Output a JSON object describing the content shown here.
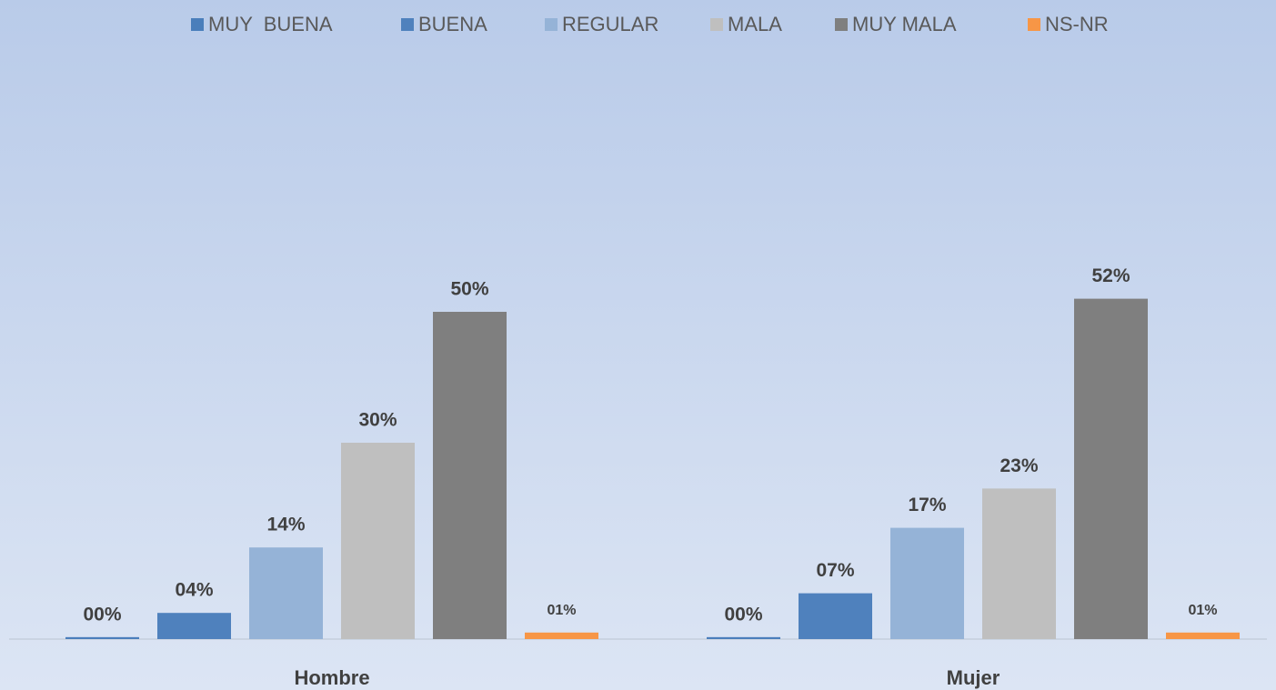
{
  "chart_data": {
    "type": "bar",
    "categories": [
      "Hombre",
      "Mujer"
    ],
    "series": [
      {
        "name": "MUY  BUENA",
        "color": "#4a7ebb",
        "values": [
          0.3,
          0.3
        ],
        "value_labels": [
          "00%",
          "00%"
        ]
      },
      {
        "name": "BUENA",
        "color": "#4f81bd",
        "values": [
          4,
          7
        ],
        "value_labels": [
          "04%",
          "07%"
        ]
      },
      {
        "name": "REGULAR",
        "color": "#95b3d7",
        "values": [
          14,
          17
        ],
        "value_labels": [
          "14%",
          "17%"
        ]
      },
      {
        "name": "MALA",
        "color": "#bfbfbf",
        "values": [
          30,
          23
        ],
        "value_labels": [
          "30%",
          "23%"
        ]
      },
      {
        "name": "MUY MALA",
        "color": "#7f7f7f",
        "values": [
          50,
          52
        ],
        "value_labels": [
          "50%",
          "52%"
        ]
      },
      {
        "name": "NS-NR",
        "color": "#f79646",
        "values": [
          1,
          1
        ],
        "value_labels": [
          "01%",
          "01%"
        ]
      }
    ]
  }
}
